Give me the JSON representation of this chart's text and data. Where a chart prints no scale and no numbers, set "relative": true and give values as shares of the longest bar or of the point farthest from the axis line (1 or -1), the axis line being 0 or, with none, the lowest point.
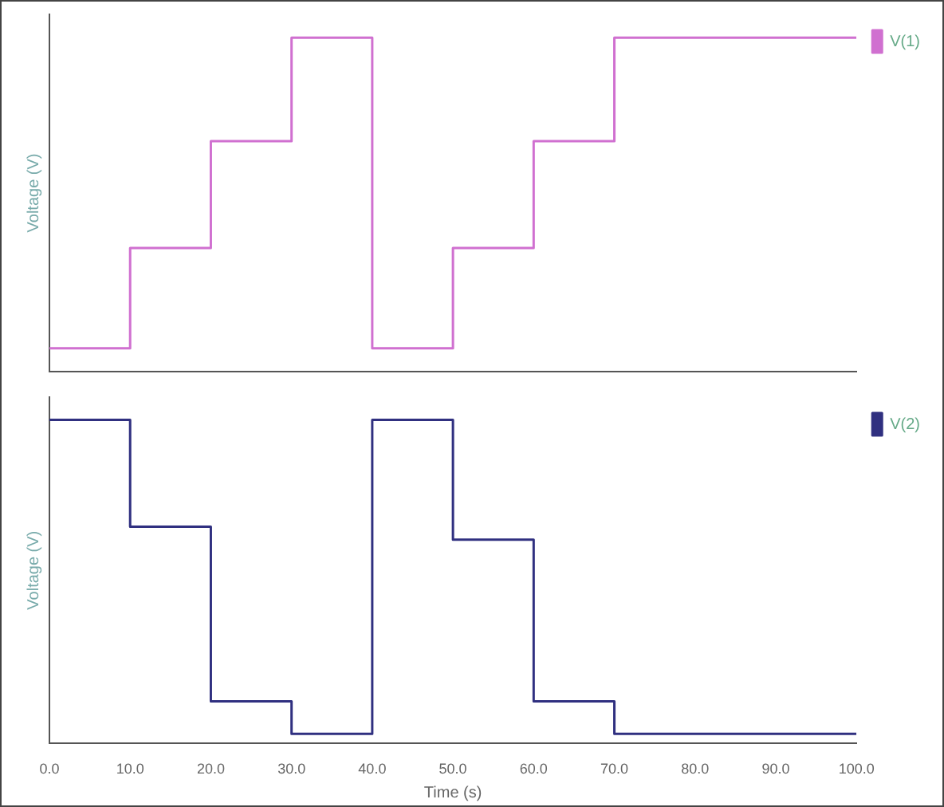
{
  "chart_data": [
    {
      "type": "step",
      "ylabel": "Voltage (V)",
      "relative": true,
      "tick_labels": false,
      "legend": "top right",
      "grid": false,
      "x": [
        0,
        10,
        20,
        30,
        40,
        50,
        60,
        70,
        80,
        90,
        100
      ],
      "xlim": [
        0,
        100
      ],
      "series": [
        {
          "name": "V(1)",
          "color": "#d070d0",
          "values": [
            0.07,
            0.37,
            0.69,
            1,
            0.07,
            0.37,
            0.69,
            1,
            1,
            1,
            1
          ]
        }
      ]
    },
    {
      "type": "step",
      "ylabel": "Voltage (V)",
      "xlabel": "Time (s)",
      "relative": true,
      "tick_labels": "x",
      "legend": "top right",
      "grid": false,
      "x": [
        0,
        10,
        20,
        30,
        40,
        50,
        60,
        70,
        80,
        90,
        100
      ],
      "xlim": [
        0,
        100
      ],
      "xticks": [
        {
          "value": 0,
          "label": "0.0"
        },
        {
          "value": 10,
          "label": "10.0"
        },
        {
          "value": 20,
          "label": "20.0"
        },
        {
          "value": 30,
          "label": "30.0"
        },
        {
          "value": 40,
          "label": "40.0"
        },
        {
          "value": 50,
          "label": "50.0"
        },
        {
          "value": 60,
          "label": "60.0"
        },
        {
          "value": 70,
          "label": "70.0"
        },
        {
          "value": 80,
          "label": "80.0"
        },
        {
          "value": 90,
          "label": "90.0"
        },
        {
          "value": 100,
          "label": "100.0"
        }
      ],
      "series": [
        {
          "name": "V(2)",
          "color": "#303080",
          "values": [
            1,
            0.67,
            0.13,
            0.03,
            1,
            0.63,
            0.13,
            0.03,
            0.03,
            0.03,
            0.03
          ]
        }
      ]
    }
  ]
}
